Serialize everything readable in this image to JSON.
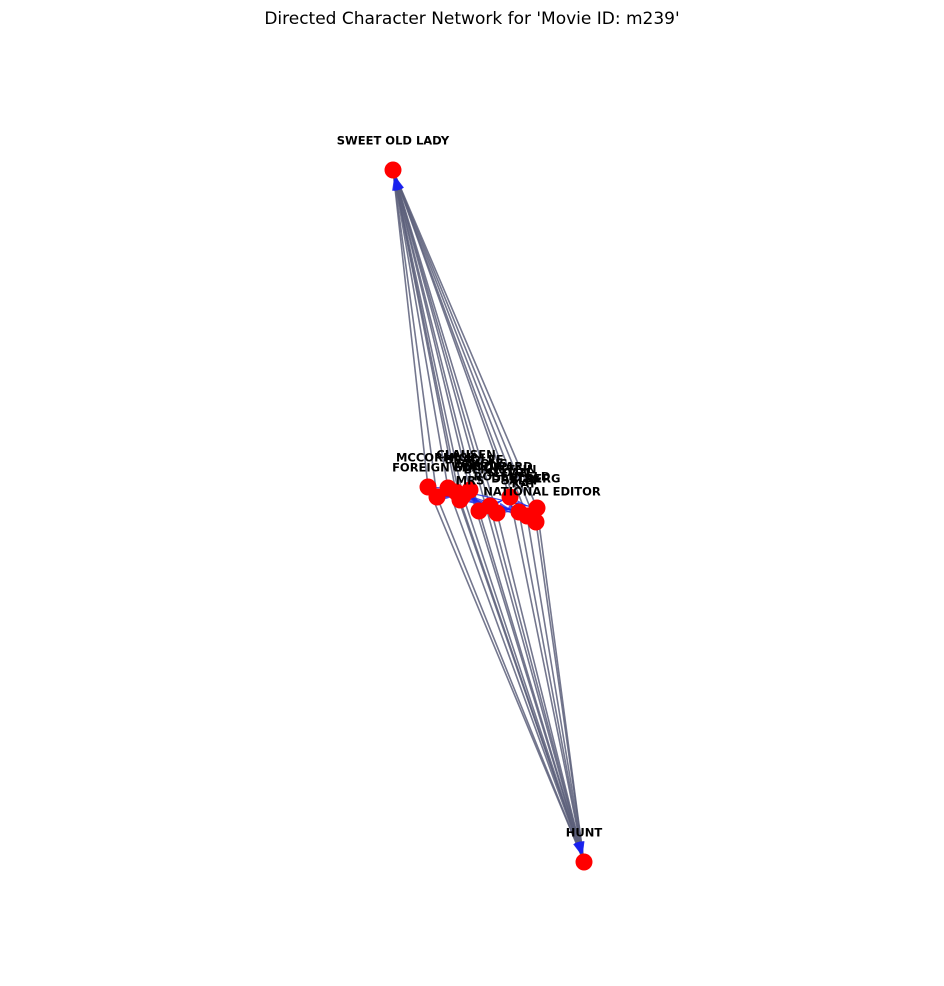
{
  "title": "Directed Character Network for 'Movie ID: m239'",
  "colors": {
    "node": "#ff0000",
    "edge": "#5c5f7a",
    "arrow": "#1a22ee",
    "label": "#000000"
  },
  "graph": {
    "directed": true,
    "nodes": [
      {
        "id": "sweet",
        "label": "SWEET OLD LADY"
      },
      {
        "id": "hunt",
        "label": "HUNT"
      },
      {
        "id": "mccormick",
        "label": "MCCORMICK"
      },
      {
        "id": "foreign",
        "label": "FOREIGN EDITOR"
      },
      {
        "id": "mrs",
        "label": "MRS"
      },
      {
        "id": "national",
        "label": "NATIONAL EDITOR"
      },
      {
        "id": "berg",
        "label": "BERG"
      },
      {
        "id": "c1",
        "label": "CLAUSEN"
      },
      {
        "id": "c2",
        "label": "BRADLEE"
      },
      {
        "id": "c3",
        "label": "SIMONS"
      },
      {
        "id": "c4",
        "label": "WOODWARD"
      },
      {
        "id": "c5",
        "label": "BERNSTEIN"
      },
      {
        "id": "c6",
        "label": "SLOAN"
      },
      {
        "id": "c7",
        "label": "ROSENFELD"
      },
      {
        "id": "c8",
        "label": "DARDIS"
      },
      {
        "id": "c9",
        "label": "SALLY"
      },
      {
        "id": "c10",
        "label": "KAY"
      }
    ],
    "hub_edges": [
      [
        "sweet",
        "hunt"
      ],
      [
        "sweet",
        "mccormick"
      ],
      [
        "sweet",
        "foreign"
      ],
      [
        "sweet",
        "mrs"
      ],
      [
        "sweet",
        "national"
      ],
      [
        "sweet",
        "berg"
      ],
      [
        "sweet",
        "c1"
      ],
      [
        "sweet",
        "c2"
      ],
      [
        "sweet",
        "c3"
      ],
      [
        "sweet",
        "c4"
      ],
      [
        "sweet",
        "c5"
      ],
      [
        "sweet",
        "c6"
      ],
      [
        "sweet",
        "c7"
      ],
      [
        "sweet",
        "c8"
      ],
      [
        "sweet",
        "c9"
      ],
      [
        "sweet",
        "c10"
      ],
      [
        "hunt",
        "mccormick"
      ],
      [
        "hunt",
        "foreign"
      ],
      [
        "hunt",
        "mrs"
      ],
      [
        "hunt",
        "national"
      ],
      [
        "hunt",
        "berg"
      ],
      [
        "hunt",
        "c1"
      ],
      [
        "hunt",
        "c2"
      ],
      [
        "hunt",
        "c3"
      ],
      [
        "hunt",
        "c4"
      ],
      [
        "hunt",
        "c5"
      ],
      [
        "hunt",
        "c6"
      ],
      [
        "hunt",
        "c7"
      ],
      [
        "hunt",
        "c8"
      ],
      [
        "hunt",
        "c9"
      ],
      [
        "hunt",
        "c10"
      ]
    ],
    "inner_edges": [
      [
        "mccormick",
        "c4"
      ],
      [
        "c4",
        "c5"
      ],
      [
        "c5",
        "c6"
      ],
      [
        "c1",
        "berg"
      ],
      [
        "c2",
        "national"
      ],
      [
        "foreign",
        "c3"
      ],
      [
        "c3",
        "c7"
      ],
      [
        "c7",
        "c8"
      ],
      [
        "mrs",
        "c9"
      ],
      [
        "c9",
        "c10"
      ],
      [
        "c10",
        "national"
      ],
      [
        "c6",
        "berg"
      ],
      [
        "c8",
        "national"
      ],
      [
        "c2",
        "c9"
      ]
    ]
  }
}
